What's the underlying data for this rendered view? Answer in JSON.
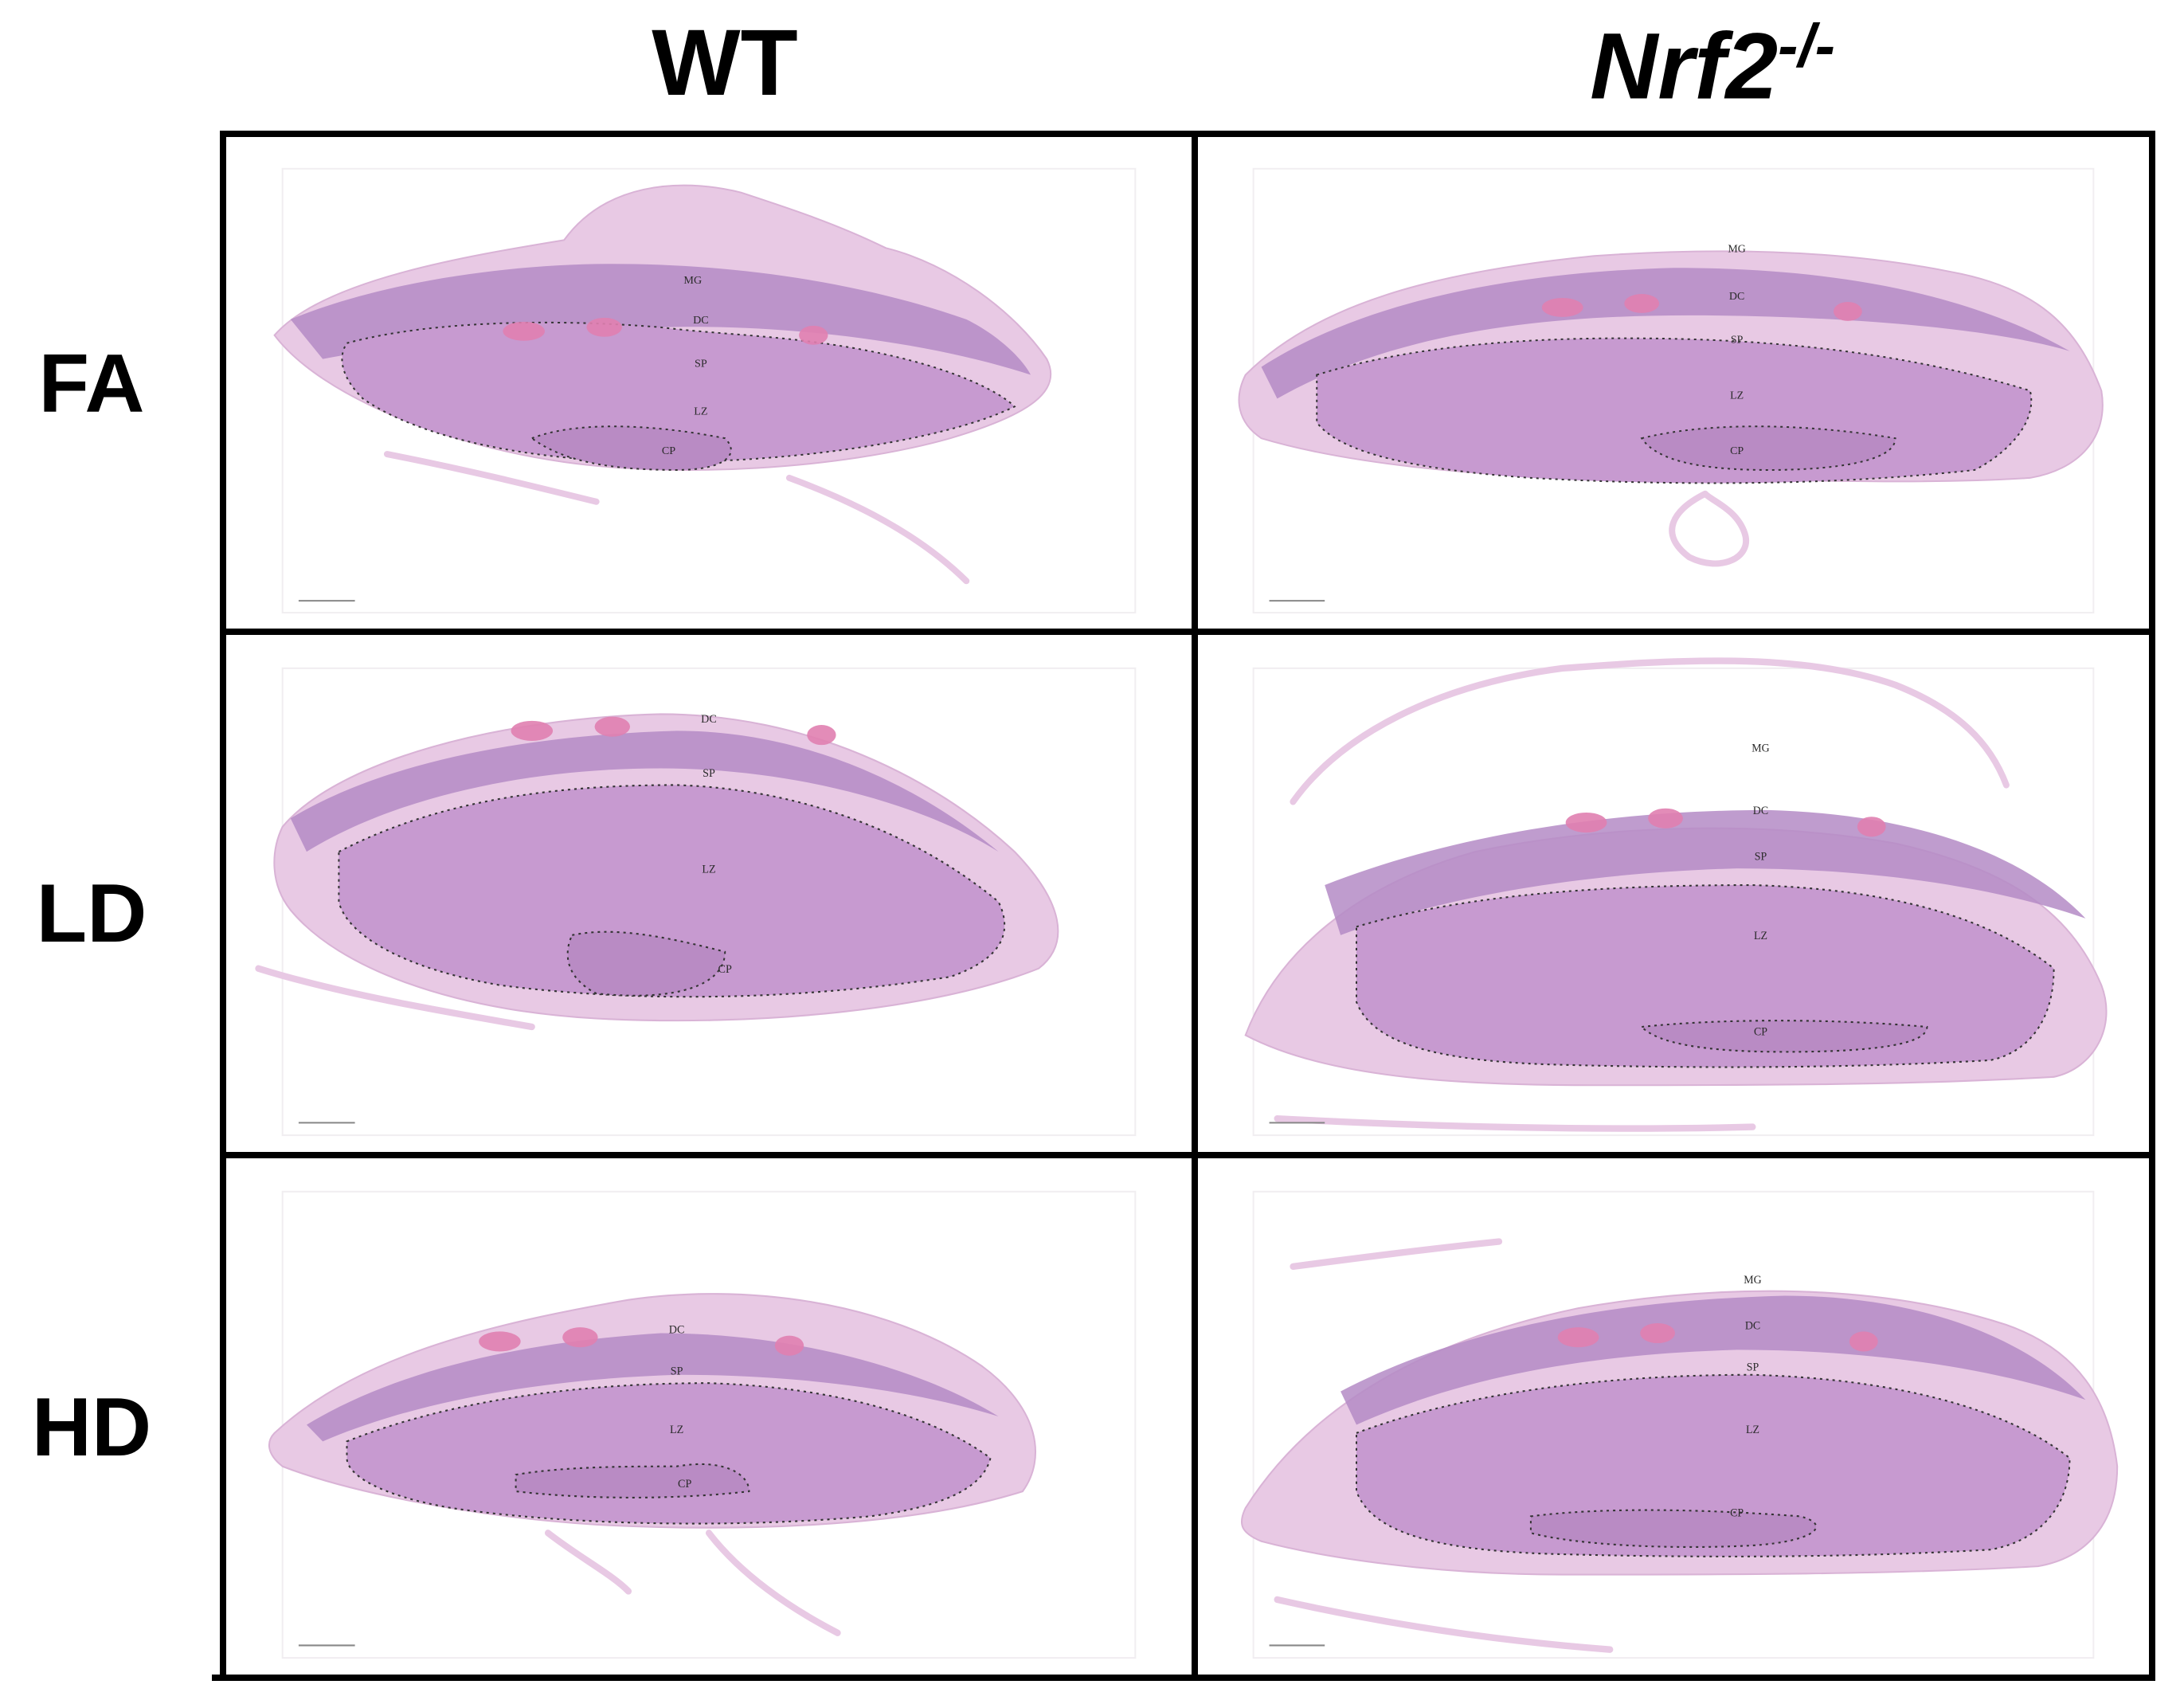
{
  "columns": [
    {
      "id": "wt",
      "label": "WT"
    },
    {
      "id": "nrf2",
      "label": "Nrf2",
      "superscript": "-/-"
    }
  ],
  "rows": [
    {
      "id": "fa",
      "label": "FA"
    },
    {
      "id": "ld",
      "label": "LD"
    },
    {
      "id": "hd",
      "label": "HD"
    }
  ],
  "panels": [
    {
      "row": "fa",
      "col": "wt",
      "regions": [
        "MG",
        "DC",
        "SP",
        "LZ",
        "CP"
      ]
    },
    {
      "row": "fa",
      "col": "nrf2",
      "regions": [
        "MG",
        "DC",
        "SP",
        "LZ",
        "CP"
      ]
    },
    {
      "row": "ld",
      "col": "wt",
      "regions": [
        "DC",
        "SP",
        "LZ",
        "CP"
      ]
    },
    {
      "row": "ld",
      "col": "nrf2",
      "regions": [
        "MG",
        "DC",
        "SP",
        "LZ",
        "CP"
      ]
    },
    {
      "row": "hd",
      "col": "wt",
      "regions": [
        "DC",
        "SP",
        "LZ",
        "CP"
      ]
    },
    {
      "row": "hd",
      "col": "nrf2",
      "regions": [
        "MG",
        "DC",
        "SP",
        "LZ",
        "CP"
      ]
    }
  ],
  "colors": {
    "tissue_light": "#e8c9e4",
    "decidua": "#b48bc6",
    "labyrinth": "#c79ad0",
    "vessel": "#e07fb0",
    "border": "#000000"
  }
}
